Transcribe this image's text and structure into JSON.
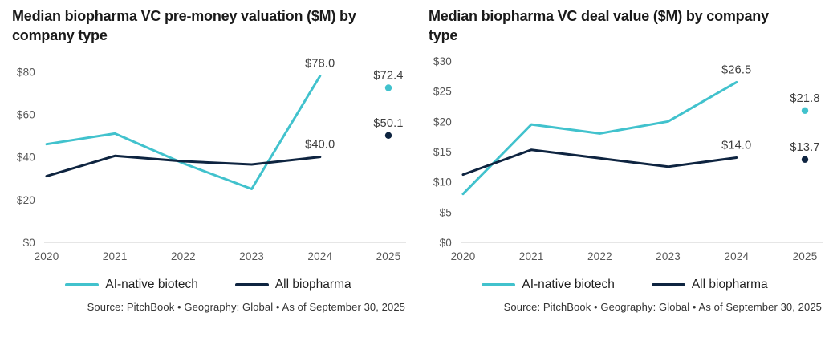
{
  "chart_data": [
    {
      "type": "line",
      "title": "Median biopharma VC pre-money valuation ($M) by company type",
      "x": [
        2020,
        2021,
        2022,
        2023,
        2024,
        2025
      ],
      "xlabel": "",
      "ylabel": "",
      "ylim": [
        0,
        85
      ],
      "grid": false,
      "legend_position": "bottom",
      "yticks": [
        {
          "value": 0,
          "label": "$0"
        },
        {
          "value": 20,
          "label": "$20"
        },
        {
          "value": 40,
          "label": "$40"
        },
        {
          "value": 60,
          "label": "$60"
        },
        {
          "value": 80,
          "label": "$80"
        }
      ],
      "series": [
        {
          "name": "AI-native biotech",
          "color": "#41c2cd",
          "values": [
            46,
            51,
            37,
            25,
            78
          ],
          "value_2025": 72.4,
          "label_2024": "$78.0",
          "label_2025": "$72.4"
        },
        {
          "name": "All biopharma",
          "color": "#0e2440",
          "values": [
            31,
            40.5,
            38,
            36.5,
            40
          ],
          "value_2025": 50.1,
          "label_2024": "$40.0",
          "label_2025": "$50.1"
        }
      ],
      "legend": [
        {
          "label": "AI-native biotech",
          "color": "#41c2cd"
        },
        {
          "label": "All biopharma",
          "color": "#0e2440"
        }
      ],
      "source": "Source: PitchBook  •  Geography: Global  •  As of September 30, 2025"
    },
    {
      "type": "line",
      "title": "Median biopharma VC deal value ($M) by company type",
      "x": [
        2020,
        2021,
        2022,
        2023,
        2024,
        2025
      ],
      "xlabel": "",
      "ylabel": "",
      "ylim": [
        0,
        30
      ],
      "grid": false,
      "legend_position": "bottom",
      "yticks": [
        {
          "value": 0,
          "label": "$0"
        },
        {
          "value": 5,
          "label": "$5"
        },
        {
          "value": 10,
          "label": "$10"
        },
        {
          "value": 15,
          "label": "$15"
        },
        {
          "value": 20,
          "label": "$20"
        },
        {
          "value": 25,
          "label": "$25"
        },
        {
          "value": 30,
          "label": "$30"
        }
      ],
      "series": [
        {
          "name": "AI-native biotech",
          "color": "#41c2cd",
          "values": [
            8,
            19.5,
            18,
            20,
            26.5
          ],
          "value_2025": 21.8,
          "label_2024": "$26.5",
          "label_2025": "$21.8"
        },
        {
          "name": "All biopharma",
          "color": "#0e2440",
          "values": [
            11.2,
            15.3,
            13.9,
            12.5,
            14
          ],
          "value_2025": 13.7,
          "label_2024": "$14.0",
          "label_2025": "$13.7"
        }
      ],
      "legend": [
        {
          "label": "AI-native biotech",
          "color": "#41c2cd"
        },
        {
          "label": "All biopharma",
          "color": "#0e2440"
        }
      ],
      "source": "Source: PitchBook  •  Geography: Global  •  As of September 30, 2025"
    }
  ]
}
